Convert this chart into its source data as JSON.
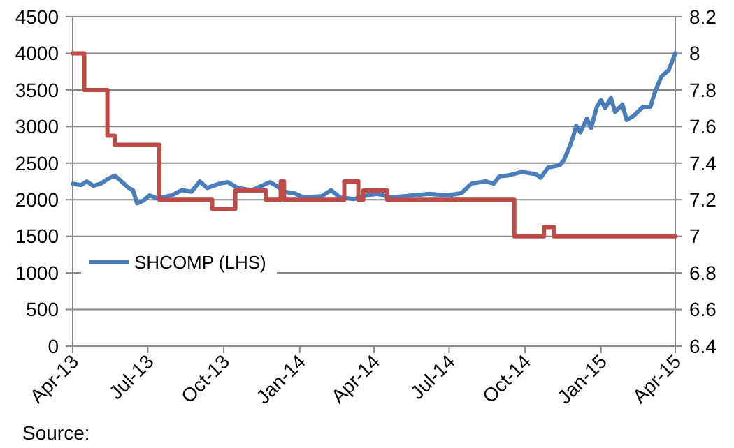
{
  "chart_data": {
    "type": "line",
    "annotations": [
      "Source:"
    ],
    "xlim": [
      "2013-04-01",
      "2015-04-01"
    ],
    "xticks": [
      {
        "value": "2013-04-01",
        "label": "Apr-13"
      },
      {
        "value": "2013-07-01",
        "label": "Jul-13"
      },
      {
        "value": "2013-10-01",
        "label": "Oct-13"
      },
      {
        "value": "2014-01-01",
        "label": "Jan-14"
      },
      {
        "value": "2014-04-01",
        "label": "Apr-14"
      },
      {
        "value": "2014-07-01",
        "label": "Jul-14"
      },
      {
        "value": "2014-10-01",
        "label": "Oct-14"
      },
      {
        "value": "2015-01-01",
        "label": "Jan-15"
      },
      {
        "value": "2015-04-01",
        "label": "Apr-15"
      }
    ],
    "ylim": [
      0,
      4500
    ],
    "yticks": [
      0,
      500,
      1000,
      1500,
      2000,
      2500,
      3000,
      3500,
      4000,
      4500
    ],
    "y2lim": [
      6.4,
      8.2
    ],
    "y2ticks": [
      6.4,
      6.6,
      6.8,
      7,
      7.2,
      7.4,
      7.6,
      7.8,
      8,
      8.2
    ],
    "grid": "y",
    "legend": "bottom left",
    "series": [
      {
        "name": "SHCOMP (LHS)",
        "color": "#4a7ebb",
        "x": [
          "2013-04-01",
          "2013-04-11",
          "2013-04-18",
          "2013-04-26",
          "2013-05-05",
          "2013-05-13",
          "2013-05-22",
          "2013-05-27",
          "2013-06-08",
          "2013-06-13",
          "2013-06-18",
          "2013-06-26",
          "2013-07-03",
          "2013-07-12",
          "2013-07-17",
          "2013-07-30",
          "2013-08-11",
          "2013-08-23",
          "2013-09-02",
          "2013-09-11",
          "2013-09-26",
          "2013-10-06",
          "2013-10-18",
          "2013-11-04",
          "2013-11-16",
          "2013-11-26",
          "2013-12-04",
          "2013-12-13",
          "2013-12-25",
          "2014-01-06",
          "2014-01-28",
          "2014-02-08",
          "2014-02-19",
          "2014-03-08",
          "2014-03-24",
          "2014-04-05",
          "2014-04-22",
          "2014-05-09",
          "2014-06-07",
          "2014-06-29",
          "2014-07-16",
          "2014-07-28",
          "2014-08-14",
          "2014-08-24",
          "2014-08-31",
          "2014-09-10",
          "2014-09-27",
          "2014-10-14",
          "2014-10-20",
          "2014-10-29",
          "2014-11-12",
          "2014-11-17",
          "2014-11-23",
          "2014-11-28",
          "2014-12-02",
          "2014-12-07",
          "2014-12-15",
          "2014-12-20",
          "2014-12-27",
          "2015-01-01",
          "2015-01-06",
          "2015-01-13",
          "2015-01-18",
          "2015-01-27",
          "2015-02-01",
          "2015-02-09",
          "2015-02-21",
          "2015-03-02",
          "2015-03-07",
          "2015-03-15",
          "2015-03-24",
          "2015-04-01"
        ],
        "values": [
          2220,
          2200,
          2250,
          2190,
          2220,
          2280,
          2330,
          2280,
          2160,
          2130,
          1950,
          1990,
          2060,
          2020,
          2030,
          2060,
          2130,
          2110,
          2250,
          2160,
          2220,
          2240,
          2160,
          2130,
          2190,
          2240,
          2190,
          2110,
          2090,
          2030,
          2050,
          2130,
          2030,
          2010,
          2060,
          2080,
          2030,
          2050,
          2080,
          2060,
          2090,
          2220,
          2250,
          2220,
          2320,
          2330,
          2380,
          2350,
          2300,
          2440,
          2470,
          2540,
          2700,
          2850,
          3010,
          2920,
          3110,
          2980,
          3270,
          3360,
          3250,
          3390,
          3200,
          3300,
          3090,
          3140,
          3270,
          3270,
          3460,
          3680,
          3770,
          4000
        ]
      },
      {
        "type": "step",
        "axis": "y2",
        "color": "#be4b48",
        "x": [
          "2013-04-01",
          "2013-04-15",
          "2013-05-13",
          "2013-05-22",
          "2013-07-15",
          "2013-09-17",
          "2013-10-15",
          "2013-11-21",
          "2013-12-09",
          "2013-12-13",
          "2014-02-24",
          "2014-03-13",
          "2014-03-19",
          "2014-04-17",
          "2014-09-18",
          "2014-10-24",
          "2014-11-05",
          "2015-04-01"
        ],
        "values": [
          8.0,
          7.8,
          7.55,
          7.5,
          7.2,
          7.15,
          7.25,
          7.2,
          7.3,
          7.2,
          7.3,
          7.2,
          7.25,
          7.2,
          7.0,
          7.05,
          7.0,
          7.0
        ]
      }
    ]
  }
}
